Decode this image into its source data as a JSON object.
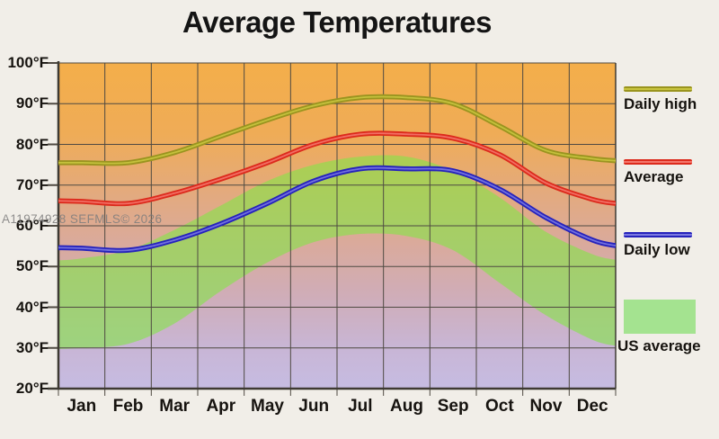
{
  "watermark": "A11974928 SEFMLS© 2026",
  "chart_data": {
    "type": "line",
    "title": "Average Temperatures",
    "categories": [
      "Jan",
      "Feb",
      "Mar",
      "Apr",
      "May",
      "Jun",
      "Jul",
      "Aug",
      "Sep",
      "Oct",
      "Nov",
      "Dec"
    ],
    "unit": "°F",
    "ylim": [
      20,
      100
    ],
    "y_tick_step": 10,
    "grid": true,
    "legend_position": "right",
    "series": [
      {
        "name": "Daily high",
        "color": "#9A941F",
        "highlight": "#C9C53F",
        "values": [
          75.5,
          75.5,
          78,
          82,
          86,
          89.5,
          91.5,
          91.5,
          90,
          84.5,
          78.5,
          76.5
        ]
      },
      {
        "name": "Average",
        "color": "#DC2A1C",
        "highlight": "#F4766B",
        "values": [
          66,
          65.5,
          68,
          71.5,
          75.5,
          80,
          82.5,
          82.5,
          81.5,
          77.5,
          70.5,
          66.5
        ]
      },
      {
        "name": "Daily low",
        "color": "#2522BC",
        "highlight": "#7B79E0",
        "values": [
          54.5,
          54,
          56.5,
          60.5,
          65.5,
          71,
          74,
          74,
          73.5,
          69,
          62,
          56.5
        ]
      }
    ],
    "band": {
      "name": "US average",
      "fill": "rgba(130,230,70,0.6)",
      "swatch": "#A4E390",
      "low": [
        30,
        31,
        36,
        44,
        51,
        56,
        58,
        57.5,
        54,
        46,
        38,
        32
      ],
      "high": [
        52,
        54,
        59,
        65,
        71,
        75,
        77,
        77,
        73.5,
        67,
        58.5,
        53
      ]
    },
    "colors": {
      "background_top": "#F4AE4A",
      "background_mid": "#DAAA9B",
      "background_bottom": "#C6BCE2",
      "gridline": "#4F4A42",
      "page_background": "#F1EEE8"
    }
  }
}
